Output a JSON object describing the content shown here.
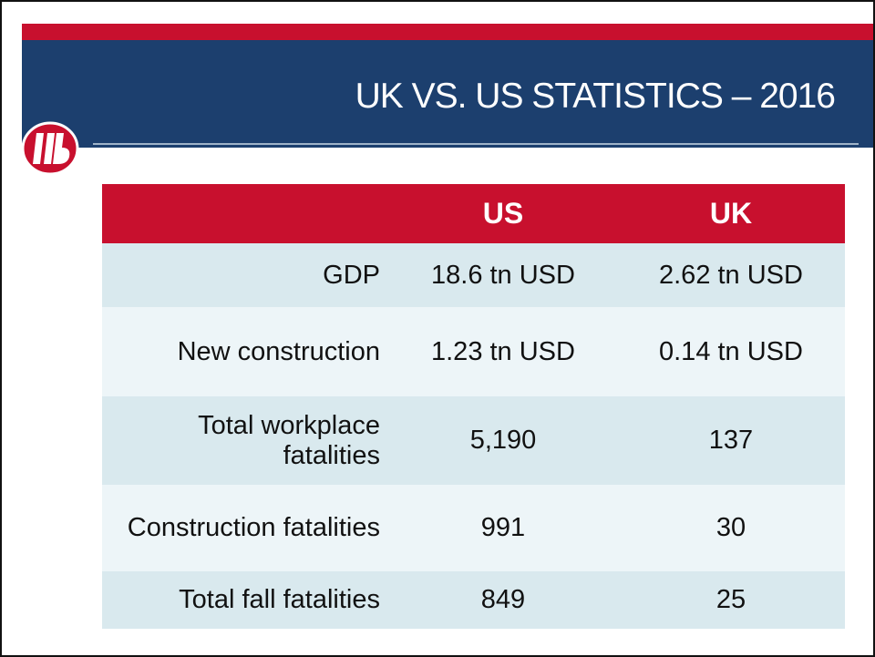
{
  "header": {
    "title": "UK VS. US STATISTICS – 2016"
  },
  "table": {
    "columns": [
      "",
      "US",
      "UK"
    ],
    "rows": [
      [
        "GDP",
        "18.6 tn USD",
        "2.62 tn USD"
      ],
      [
        "New construction",
        "1.23 tn USD",
        "0.14 tn USD"
      ],
      [
        "Total workplace fatalities",
        "5,190",
        "137"
      ],
      [
        "Construction fatalities",
        "991",
        "30"
      ],
      [
        "Total fall fatalities",
        "849",
        "25"
      ]
    ]
  }
}
